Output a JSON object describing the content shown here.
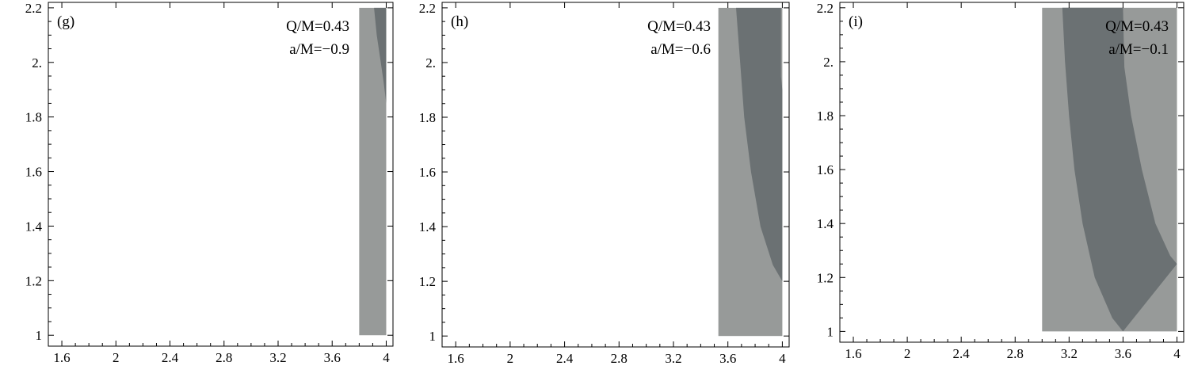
{
  "chart_data": [
    {
      "type": "heatmap",
      "panel_label": "(g)",
      "annotations": [
        "Q/M=0.43",
        "a/M=−0.9"
      ],
      "xlim": [
        1.5,
        4.05
      ],
      "ylim": [
        0.96,
        2.22
      ],
      "xticks": [
        1.6,
        2,
        2.4,
        2.8,
        3.2,
        3.6,
        4
      ],
      "xtick_labels": [
        "1.6",
        "2",
        "2.4",
        "2.8",
        "3.2",
        "3.6",
        "4"
      ],
      "yticks": [
        1,
        1.2,
        1.4,
        1.6,
        1.8,
        2.0,
        2.2
      ],
      "ytick_labels": [
        "1",
        "1.2",
        "1.4",
        "1.6",
        "1.8",
        "2.",
        "2.2"
      ],
      "light_region": {
        "x": [
          3.8,
          4.0
        ],
        "y": [
          1.0,
          2.2
        ]
      },
      "dark_region_left_boundary": [
        [
          3.91,
          2.2
        ],
        [
          3.93,
          2.1
        ],
        [
          3.96,
          2.0
        ],
        [
          3.98,
          1.93
        ],
        [
          4.0,
          1.85
        ]
      ],
      "colors": {
        "light": "#979a99",
        "dark": "#6b7173"
      }
    },
    {
      "type": "heatmap",
      "panel_label": "(h)",
      "annotations": [
        "Q/M=0.43",
        "a/M=−0.6"
      ],
      "xlim": [
        1.5,
        4.05
      ],
      "ylim": [
        0.96,
        2.22
      ],
      "xticks": [
        1.6,
        2,
        2.4,
        2.8,
        3.2,
        3.6,
        4
      ],
      "xtick_labels": [
        "1.6",
        "2",
        "2.4",
        "2.8",
        "3.2",
        "3.6",
        "4"
      ],
      "yticks": [
        1,
        1.2,
        1.4,
        1.6,
        1.8,
        2.0,
        2.2
      ],
      "ytick_labels": [
        "1",
        "1.2",
        "1.4",
        "1.6",
        "1.8",
        "2.",
        "2.2"
      ],
      "light_region": {
        "x": [
          3.53,
          4.0
        ],
        "y": [
          1.0,
          2.2
        ]
      },
      "dark_region_left_boundary": [
        [
          3.66,
          2.2
        ],
        [
          3.69,
          2.0
        ],
        [
          3.72,
          1.8
        ],
        [
          3.77,
          1.6
        ],
        [
          3.84,
          1.4
        ],
        [
          3.93,
          1.26
        ],
        [
          4.0,
          1.2
        ]
      ],
      "dark_region_right_boundary": [
        [
          3.99,
          2.2
        ],
        [
          3.99,
          1.95
        ],
        [
          4.0,
          1.9
        ]
      ],
      "colors": {
        "light": "#979a99",
        "dark": "#6b7173"
      }
    },
    {
      "type": "heatmap",
      "panel_label": "(i)",
      "annotations": [
        "Q/M=0.43",
        "a/M=−0.1"
      ],
      "xlim": [
        1.5,
        4.05
      ],
      "ylim": [
        0.96,
        2.22
      ],
      "xticks": [
        1.6,
        2,
        2.4,
        2.8,
        3.2,
        3.6,
        4
      ],
      "xtick_labels": [
        "1.6",
        "2",
        "2.4",
        "2.8",
        "3.2",
        "3.6",
        "4"
      ],
      "yticks": [
        1,
        1.2,
        1.4,
        1.6,
        1.8,
        2.0,
        2.2
      ],
      "ytick_labels": [
        "1",
        "1.2",
        "1.4",
        "1.6",
        "1.8",
        "2.",
        "2.2"
      ],
      "light_region": {
        "x": [
          3.0,
          4.0
        ],
        "y": [
          1.0,
          2.2
        ]
      },
      "dark_region_left_boundary": [
        [
          3.15,
          2.2
        ],
        [
          3.17,
          2.0
        ],
        [
          3.2,
          1.8
        ],
        [
          3.24,
          1.6
        ],
        [
          3.3,
          1.4
        ],
        [
          3.39,
          1.2
        ],
        [
          3.52,
          1.05
        ],
        [
          3.6,
          1.0
        ]
      ],
      "dark_region_right_boundary": [
        [
          3.6,
          2.2
        ],
        [
          3.61,
          1.98
        ],
        [
          3.66,
          1.8
        ],
        [
          3.74,
          1.6
        ],
        [
          3.84,
          1.4
        ],
        [
          3.95,
          1.28
        ],
        [
          4.0,
          1.25
        ]
      ],
      "colors": {
        "light": "#979a99",
        "dark": "#6b7173"
      }
    }
  ]
}
